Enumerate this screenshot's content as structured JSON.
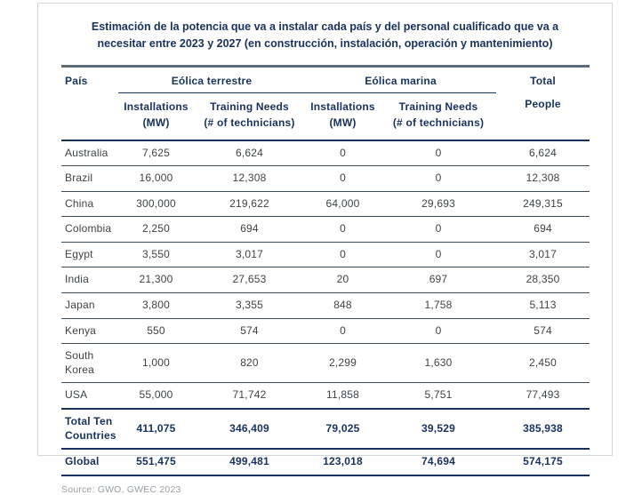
{
  "title": "Estimación de la potencia que va a instalar cada país y del personal cualificado que va a necesitar entre 2023 y 2027 (en construcción, instalación, operación y mantenimiento)",
  "source": "Source: GWO, GWEC 2023",
  "colors": {
    "navy": "#18325e",
    "body_text": "#3e4347",
    "row_divider": "#3f4c5a",
    "header_top_rule": "#5e6c7a",
    "box_border": "#d4d6d8",
    "source_text": "#98a0a6"
  },
  "table": {
    "pais": "País",
    "terrestre": "Eólica terrestre",
    "marina": "Eólica marina",
    "total": "Total",
    "people": "People",
    "sub_inst1": "Installations",
    "sub_inst2": "(MW)",
    "sub_train1": "Training Needs",
    "sub_train2": "(# of technicians)",
    "rows": [
      {
        "country": "Australia",
        "t_mw": "7,625",
        "t_tn": "6,624",
        "m_mw": "0",
        "m_tn": "0",
        "total": "6,624",
        "bold": false
      },
      {
        "country": "Brazil",
        "t_mw": "16,000",
        "t_tn": "12,308",
        "m_mw": "0",
        "m_tn": "0",
        "total": "12,308",
        "bold": false
      },
      {
        "country": "China",
        "t_mw": "300,000",
        "t_tn": "219,622",
        "m_mw": "64,000",
        "m_tn": "29,693",
        "total": "249,315",
        "bold": false
      },
      {
        "country": "Colombia",
        "t_mw": "2,250",
        "t_tn": "694",
        "m_mw": "0",
        "m_tn": "0",
        "total": "694",
        "bold": false
      },
      {
        "country": "Egypt",
        "t_mw": "3,550",
        "t_tn": "3,017",
        "m_mw": "0",
        "m_tn": "0",
        "total": "3,017",
        "bold": false
      },
      {
        "country": "India",
        "t_mw": "21,300",
        "t_tn": "27,653",
        "m_mw": "20",
        "m_tn": "697",
        "total": "28,350",
        "bold": false
      },
      {
        "country": "Japan",
        "t_mw": "3,800",
        "t_tn": "3,355",
        "m_mw": "848",
        "m_tn": "1,758",
        "total": "5,113",
        "bold": false
      },
      {
        "country": "Kenya",
        "t_mw": "550",
        "t_tn": "574",
        "m_mw": "0",
        "m_tn": "0",
        "total": "574",
        "bold": false
      },
      {
        "country": "South Korea",
        "t_mw": "1,000",
        "t_tn": "820",
        "m_mw": "2,299",
        "m_tn": "1,630",
        "total": "2,450",
        "bold": false
      },
      {
        "country": "USA",
        "t_mw": "55,000",
        "t_tn": "71,742",
        "m_mw": "11,858",
        "m_tn": "5,751",
        "total": "77,493",
        "bold": false
      },
      {
        "country": "Total Ten Countries",
        "t_mw": "411,075",
        "t_tn": "346,409",
        "m_mw": "79,025",
        "m_tn": "39,529",
        "total": "385,938",
        "bold": true
      },
      {
        "country": "Global",
        "t_mw": "551,475",
        "t_tn": "499,481",
        "m_mw": "123,018",
        "m_tn": "74,694",
        "total": "574,175",
        "bold": true
      }
    ]
  }
}
